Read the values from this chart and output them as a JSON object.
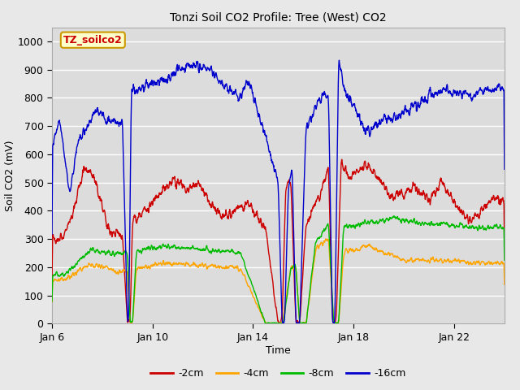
{
  "title": "Tonzi Soil CO2 Profile: Tree (West) CO2",
  "xlabel": "Time",
  "ylabel": "Soil CO2 (mV)",
  "ylim": [
    0,
    1050
  ],
  "yticks": [
    0,
    100,
    200,
    300,
    400,
    500,
    600,
    700,
    800,
    900,
    1000
  ],
  "background_color": "#e8e8e8",
  "plot_bg_color": "#dcdcdc",
  "grid_color": "#ffffff",
  "series": {
    "-2cm": {
      "color": "#cc0000",
      "lw": 1.0
    },
    "-4cm": {
      "color": "#ffa500",
      "lw": 1.0
    },
    "-8cm": {
      "color": "#00bb00",
      "lw": 1.0
    },
    "-16cm": {
      "color": "#0000cc",
      "lw": 1.0
    }
  },
  "legend_label_colors": {
    "-2cm": "#cc0000",
    "-4cm": "#ffa500",
    "-8cm": "#00bb00",
    "-16cm": "#0000cc"
  },
  "box_label": "TZ_soilco2",
  "box_bg": "#ffffcc",
  "box_border": "#cc9900",
  "box_text_color": "#cc0000",
  "xtick_labels": [
    "Jan 6",
    "Jan 10",
    "Jan 14",
    "Jan 18",
    "Jan 22"
  ],
  "xtick_positions": [
    0,
    4,
    8,
    12,
    16
  ],
  "xlim": [
    0,
    18
  ]
}
